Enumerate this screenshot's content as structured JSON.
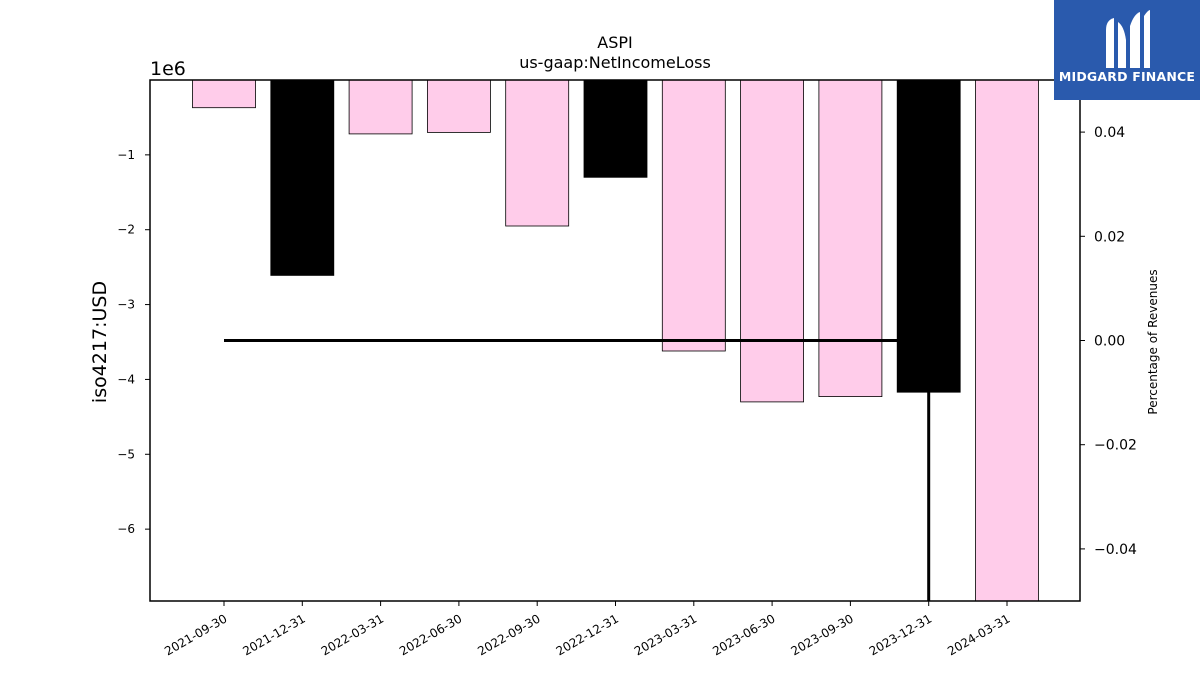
{
  "chart_data": {
    "type": "bar",
    "title": "ASPI",
    "subtitle": "us-gaap:NetIncomeLoss",
    "ylabel": "iso4217:USD",
    "y2label": "Percentage of Revenues",
    "offset_text": "1e6",
    "categories": [
      "2021-09-30",
      "2021-12-31",
      "2022-03-31",
      "2022-06-30",
      "2022-09-30",
      "2022-12-31",
      "2023-03-31",
      "2023-06-30",
      "2023-09-30",
      "2023-12-31",
      "2024-03-31"
    ],
    "values": [
      -370000,
      -2610000,
      -720000,
      -700000,
      -1950000,
      -1300000,
      -3620000,
      -4300000,
      -4230000,
      -4170000,
      -6960000
    ],
    "bar_colors": [
      "#ffccea",
      "#000000",
      "#ffccea",
      "#ffccea",
      "#ffccea",
      "#000000",
      "#ffccea",
      "#ffccea",
      "#ffccea",
      "#000000",
      "#ffccea"
    ],
    "ylim": [
      -6960000,
      0
    ],
    "yticks": [
      -1000000,
      -2000000,
      -3000000,
      -4000000,
      -5000000,
      -6000000
    ],
    "ytick_labels": [
      "−1",
      "−2",
      "−3",
      "−4",
      "−5",
      "−6"
    ],
    "y2lim": [
      -0.05,
      0.05
    ],
    "y2ticks": [
      0.04,
      0.02,
      0.0,
      -0.02,
      -0.04
    ],
    "y2tick_labels": [
      "0.04",
      "0.02",
      "0.00",
      "−0.02",
      "−0.04"
    ],
    "ratio_line": {
      "x": [
        "2021-09-30",
        "2023-12-31"
      ],
      "values": [
        0.0,
        0.0
      ],
      "drop_to": -0.05,
      "color": "#000000"
    },
    "grid": false,
    "legend": "none"
  },
  "logo": {
    "text": "MIDGARD FINANCE",
    "color": "#2a5aad"
  }
}
